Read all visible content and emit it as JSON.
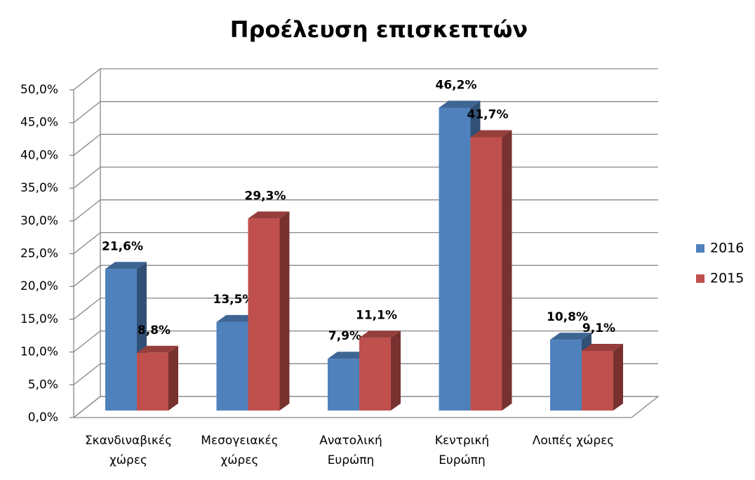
{
  "chart_data": {
    "type": "bar3d",
    "title": "Προέλευση επισκεπτών",
    "categories": [
      "Σκανδιναβικές χώρες",
      "Μεσογειακές χώρες",
      "Ανατολική Ευρώπη",
      "Κεντρική Ευρώπη",
      "Λοιπές χώρες"
    ],
    "series": [
      {
        "name": "2016",
        "color": "#4f81bd",
        "values": [
          21.6,
          13.5,
          7.9,
          46.2,
          10.8
        ],
        "value_labels": [
          "21,6%",
          "13,5%",
          "7,9%",
          "46,2%",
          "10,8%"
        ]
      },
      {
        "name": "2015",
        "color": "#c0504d",
        "values": [
          8.8,
          29.3,
          11.1,
          41.7,
          9.1
        ],
        "value_labels": [
          "8,8%",
          "29,3%",
          "11,1%",
          "41,7%",
          "9,1%"
        ]
      }
    ],
    "ylim": [
      0,
      50
    ],
    "yticks": [
      {
        "value": 0,
        "label": "0,0%"
      },
      {
        "value": 5,
        "label": "5,0%"
      },
      {
        "value": 10,
        "label": "10,0%"
      },
      {
        "value": 15,
        "label": "15,0%"
      },
      {
        "value": 20,
        "label": "20,0%"
      },
      {
        "value": 25,
        "label": "25,0%"
      },
      {
        "value": 30,
        "label": "30,0%"
      },
      {
        "value": 35,
        "label": "35,0%"
      },
      {
        "value": 40,
        "label": "40,0%"
      },
      {
        "value": 45,
        "label": "45,0%"
      },
      {
        "value": 50,
        "label": "50,0%"
      }
    ],
    "grid": true,
    "legend": "right"
  }
}
